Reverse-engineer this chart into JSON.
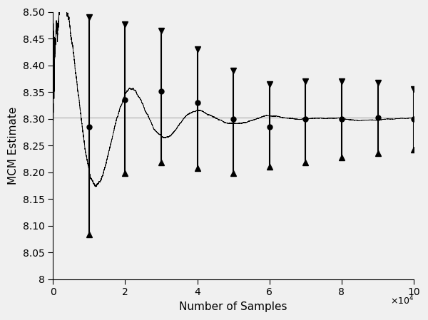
{
  "exact_price": 8.302,
  "n_max": 100000,
  "xlabel": "Number of Samples",
  "ylabel": "MCM Estimate",
  "xlim": [
    0,
    100000
  ],
  "ylim": [
    8.0,
    8.5
  ],
  "yticks": [
    8.0,
    8.05,
    8.1,
    8.15,
    8.2,
    8.25,
    8.3,
    8.35,
    8.4,
    8.45,
    8.5
  ],
  "xticks": [
    0,
    20000,
    40000,
    60000,
    80000,
    100000
  ],
  "xtick_labels": [
    "0",
    "2",
    "4",
    "6",
    "8",
    "10"
  ],
  "ci_n": [
    10000,
    20000,
    30000,
    40000,
    50000,
    60000,
    70000,
    80000,
    90000,
    100000
  ],
  "ci_centers": [
    8.285,
    8.335,
    8.352,
    8.33,
    8.3,
    8.285,
    8.299,
    8.3,
    8.302,
    8.3
  ],
  "ci_upper": [
    8.49,
    8.477,
    8.465,
    8.43,
    8.39,
    8.365,
    8.37,
    8.37,
    8.368,
    8.355
  ],
  "ci_lower": [
    8.083,
    8.198,
    8.218,
    8.208,
    8.198,
    8.21,
    8.218,
    8.228,
    8.235,
    8.242
  ],
  "line_color": "#000000",
  "ci_color": "#000000",
  "hline_color": "#aaaaaa",
  "background_color": "#f0f0f0",
  "figsize": [
    6.0,
    4.49
  ],
  "dpi": 100,
  "seed": 12345
}
